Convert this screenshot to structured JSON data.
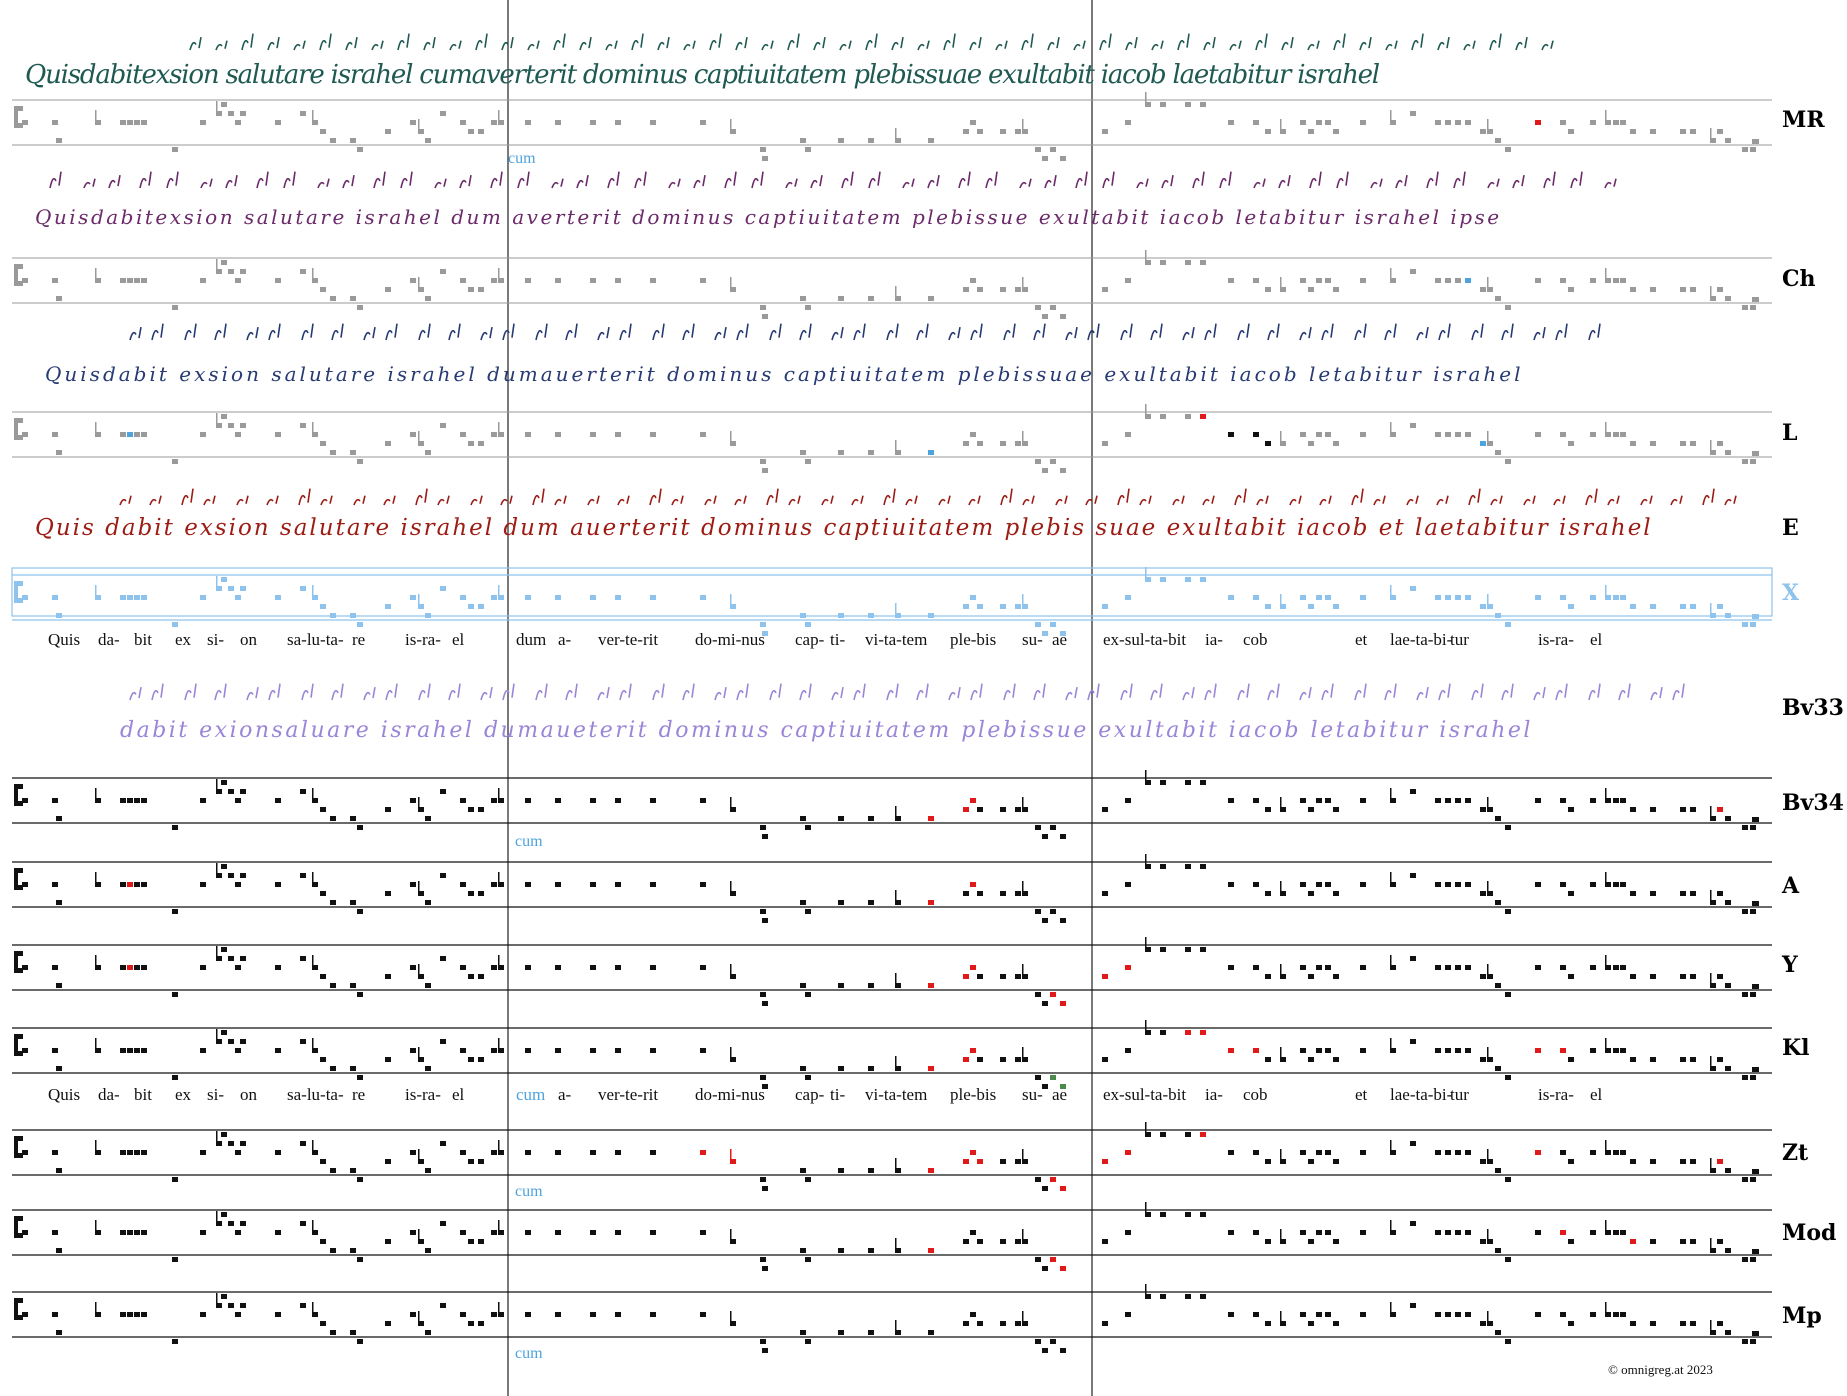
{
  "colors": {
    "black": "#111111",
    "gray": "#9a9a9a",
    "red": "#e01a1a",
    "blue": "#8ec3ee",
    "teal": "#1f5a52",
    "purple": "#6b2a6a",
    "navy": "#273a73",
    "darkred": "#9c1c14",
    "lavender": "#9b85d8",
    "cum": "#4fa3dd"
  },
  "manuscript_texts": {
    "MR": "Quisdabitexsion salutare israhel cumaverterit dominus captiuitatem plebissuae exultabit iacob laetabitur israhel",
    "Ch": "Quisdabitexsion salutare israhel dum averterit dominus captiuitatem plebissue exultabit iacob letabitur israhel ipse",
    "L": "Quisdabit exsion salutare israhel dumauerterit dominus captiuitatem plebissuae exultabit iacob letabitur israhel",
    "E": "Quis dabit exsion salutare israhel dum auerterit dominus captiuitatem plebis suae exultabit iacob et laetabitur israhel",
    "Bv33": "dabit exionsaluare israhel dumaueterit dominus captiuitatem plebissue exultabit iacob letabitur israhel"
  },
  "text_rows": [
    {
      "id": "text-row-1",
      "syllables": [
        "Quis",
        "da-",
        "bit",
        "ex",
        "si-",
        "on",
        "sa-lu-ta-",
        "re",
        "is-ra-",
        "el",
        "dum",
        "a-",
        "ver-te-rit",
        "do-mi-nus",
        "cap-",
        "ti-",
        "vi-ta-tem",
        "ple-bis",
        "su-",
        "ae",
        "ex-sul-ta-bit",
        "ia-",
        "cob",
        "et",
        "lae-ta-bi-",
        "tur",
        "is-ra-",
        "el"
      ]
    },
    {
      "id": "text-row-2",
      "syllables": [
        "Quis",
        "da-",
        "bit",
        "ex",
        "si-",
        "on",
        "sa-lu-ta-",
        "re",
        "is-ra-",
        "el",
        "cum",
        "a-",
        "ver-te-rit",
        "do-mi-nus",
        "cap-",
        "ti-",
        "vi-ta-tem",
        "ple-bis",
        "su-",
        "ae",
        "ex-sul-ta-bit",
        "ia-",
        "cob",
        "et",
        "lae-ta-bi-",
        "tur",
        "is-ra-",
        "el"
      ]
    }
  ],
  "cum_label": "cum",
  "staff_labels": [
    "MR",
    "Ch",
    "L",
    "E",
    "X",
    "Bv33",
    "Bv34",
    "A",
    "Y",
    "Kl",
    "Zt",
    "Mod",
    "Mp"
  ],
  "footer": "©  omnigreg.at     2023"
}
